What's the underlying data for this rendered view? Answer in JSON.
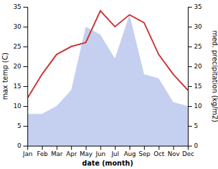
{
  "chart_data": {
    "type": "line",
    "xlabel": "date (month)",
    "ylabel": "max temp (C)",
    "y2label": "med. precipitation (kg/m2)",
    "categories": [
      "Jan",
      "Feb",
      "Mar",
      "Apr",
      "May",
      "Jun",
      "Jul",
      "Aug",
      "Sep",
      "Oct",
      "Nov",
      "Dec"
    ],
    "series": [
      {
        "type": "line",
        "color": "#cc3333",
        "values": [
          12,
          18,
          23,
          25,
          26,
          34,
          30,
          33,
          31,
          23,
          18,
          14
        ]
      },
      {
        "type": "area",
        "axis": "y2",
        "color": "#c5cff0",
        "values": [
          8,
          8,
          10,
          14,
          30,
          28,
          22,
          33,
          18,
          17,
          11,
          10
        ]
      }
    ],
    "ylim": [
      0,
      35
    ],
    "yticks": [
      0,
      5,
      10,
      15,
      20,
      25,
      30,
      35
    ],
    "y2lim": [
      0,
      35
    ],
    "y2ticks": [
      0,
      5,
      10,
      15,
      20,
      25,
      30,
      35
    ]
  }
}
